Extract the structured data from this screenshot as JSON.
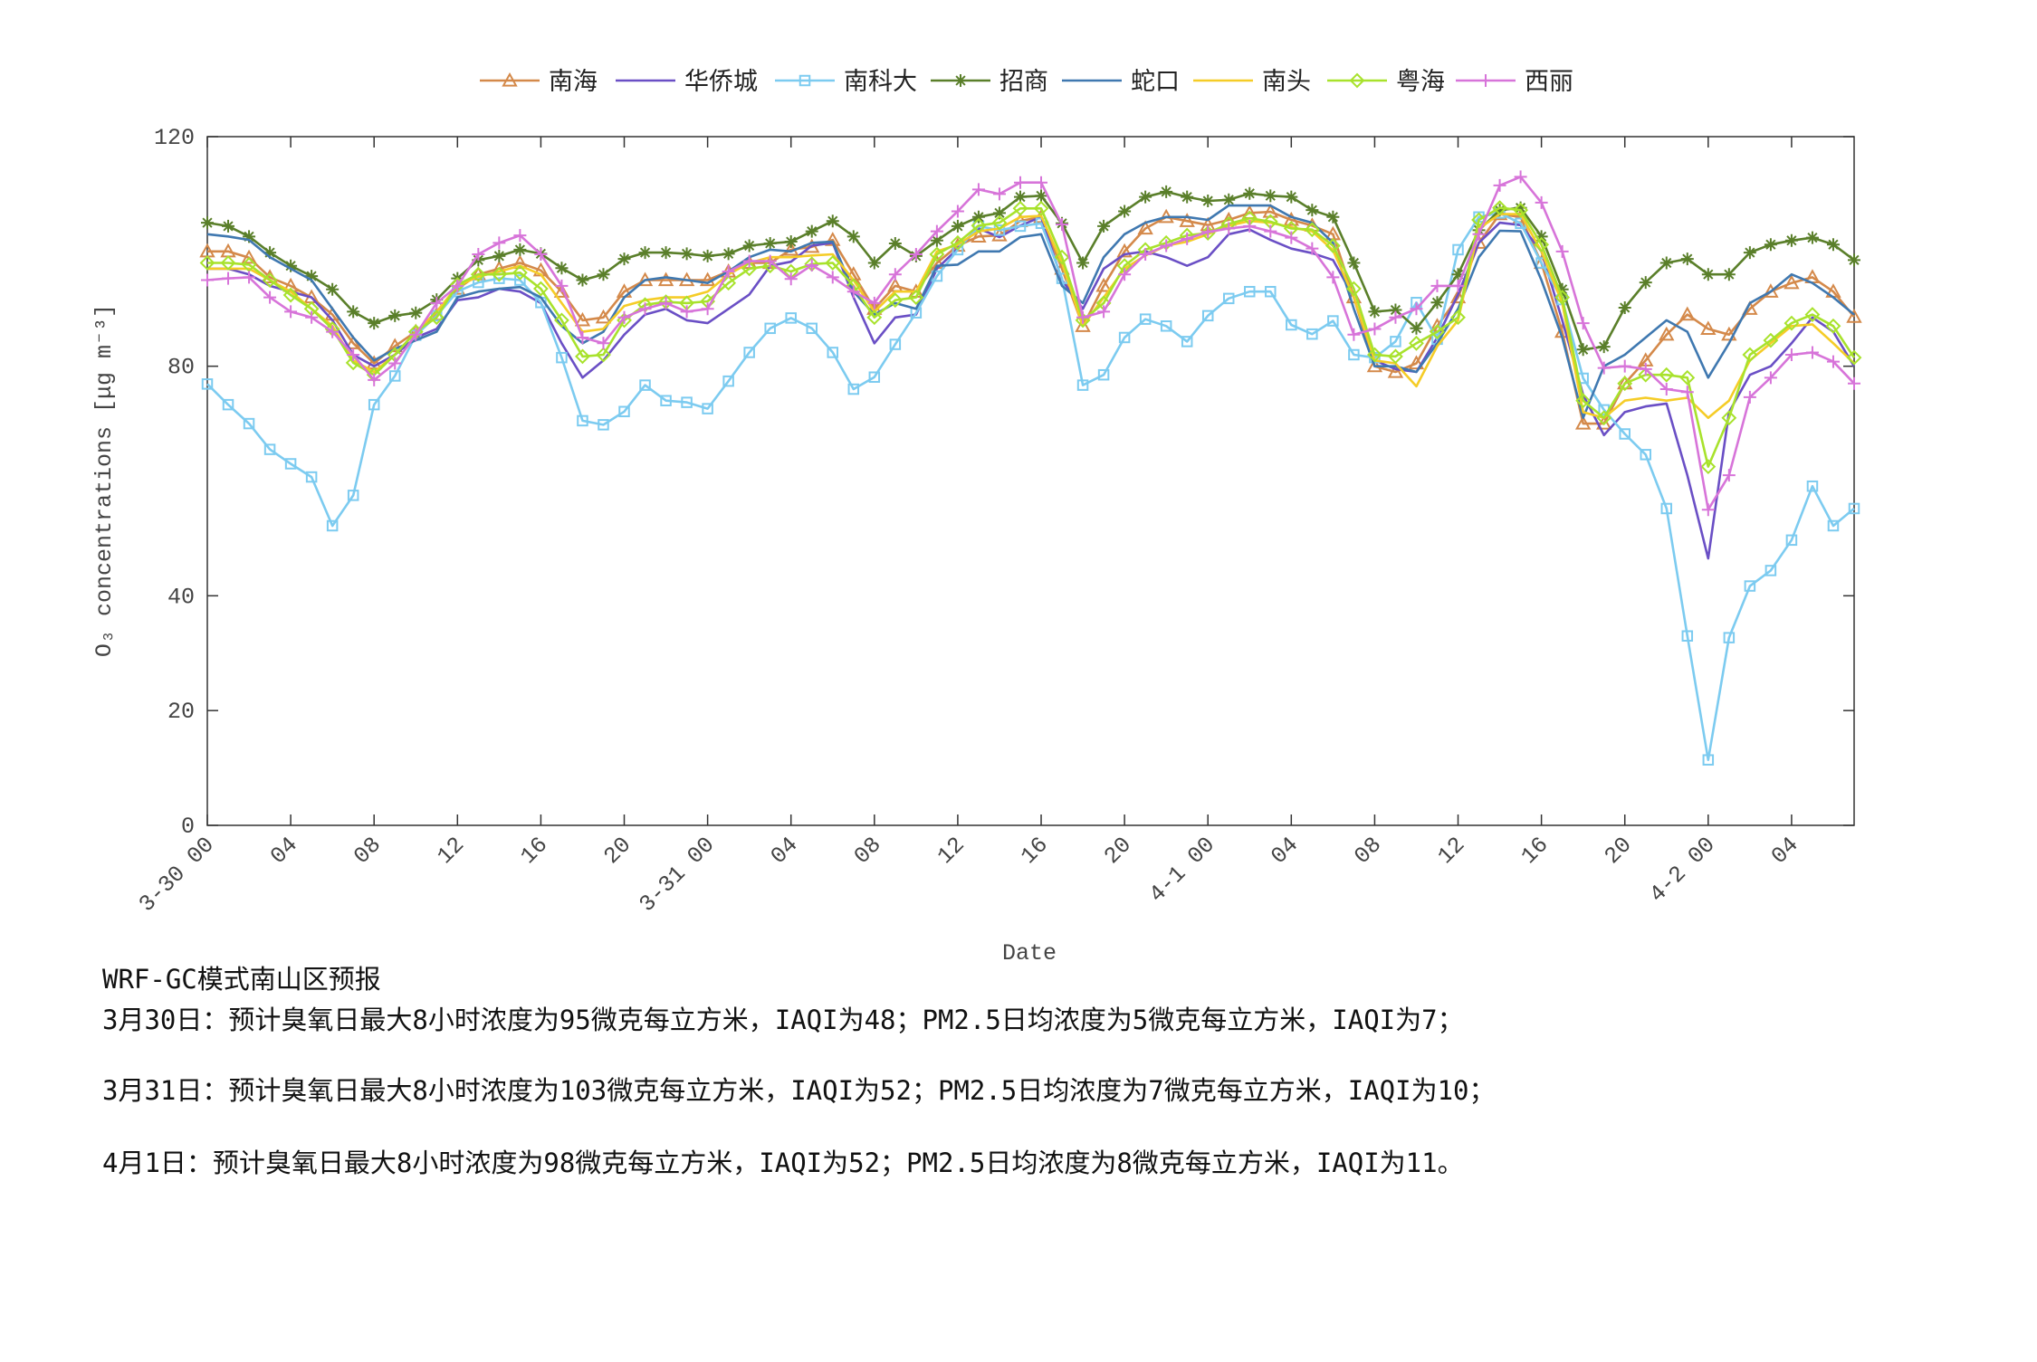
{
  "chart_data": {
    "type": "line",
    "xlabel": "Date",
    "ylabel": "O₃ concentrations [μg m⁻³]",
    "categories": [
      "3-30 00",
      null,
      null,
      null,
      "04",
      null,
      null,
      null,
      "08",
      null,
      null,
      null,
      "12",
      null,
      null,
      null,
      "16",
      null,
      null,
      null,
      "20",
      null,
      null,
      null,
      "3-31 00",
      null,
      null,
      null,
      "04",
      null,
      null,
      null,
      "08",
      null,
      null,
      null,
      "12",
      null,
      null,
      null,
      "16",
      null,
      null,
      null,
      "20",
      null,
      null,
      null,
      "4-1 00",
      null,
      null,
      null,
      "04",
      null,
      null,
      null,
      "08",
      null,
      null,
      null,
      "12",
      null,
      null,
      null,
      "16",
      null,
      null,
      null,
      "20",
      null,
      null,
      null,
      "4-2 00",
      null,
      null,
      null,
      "04",
      null,
      null,
      null
    ],
    "ylim": [
      0,
      120
    ],
    "yticks": [
      0,
      20,
      40,
      80,
      120
    ],
    "legend": "top",
    "series": [
      {
        "name": "南海",
        "color": "#d4894a",
        "marker": "triangle",
        "values": [
          100,
          100,
          98.9,
          95.5,
          94,
          92,
          89,
          84,
          80.5,
          83.5,
          86,
          89,
          93.5,
          96,
          97,
          98,
          96.7,
          93,
          88,
          88.5,
          93,
          95,
          95,
          95,
          95,
          96.5,
          98,
          98,
          100.3,
          100.8,
          102,
          96,
          90,
          94,
          93,
          98,
          101,
          102.6,
          102.8,
          105.3,
          106,
          97,
          87,
          94,
          100,
          104,
          106,
          105.3,
          104.6,
          105.5,
          106.7,
          106.9,
          105.5,
          104.5,
          103,
          92,
          80,
          79,
          80.5,
          87,
          92,
          101.5,
          106.5,
          106,
          98,
          86,
          70,
          70,
          77,
          81,
          85.5,
          89,
          86.5,
          85.5,
          90,
          93,
          94.5,
          95.5,
          93,
          88.6
        ]
      },
      {
        "name": "华侨城",
        "color": "#6a4fc5",
        "marker": "none",
        "values": [
          97,
          97,
          96,
          94,
          93,
          92,
          88,
          82,
          80,
          82,
          85,
          86.5,
          91.5,
          92,
          93.5,
          93,
          91,
          84,
          78,
          81,
          85.5,
          89,
          90,
          88,
          87.5,
          90,
          92.5,
          97.5,
          98.2,
          101,
          101.5,
          92,
          84,
          88.5,
          89,
          97,
          100.5,
          104,
          102.5,
          104.5,
          106,
          95,
          90,
          97,
          99.5,
          100,
          99,
          97.5,
          99,
          103,
          103.8,
          102,
          100.5,
          99.7,
          98.5,
          92,
          81,
          79.5,
          79,
          85,
          92.5,
          101.5,
          105,
          104.6,
          100,
          88,
          75,
          68,
          72,
          73,
          73.5,
          61,
          46.5,
          72,
          78.5,
          80,
          84,
          88.5,
          86,
          80
        ]
      },
      {
        "name": "南科大",
        "color": "#7ccbf0",
        "marker": "square",
        "values": [
          76.9,
          73.3,
          70,
          65.5,
          63,
          60.7,
          52.2,
          57.5,
          73.3,
          78.3,
          85.4,
          88.8,
          93,
          94.6,
          95.3,
          95,
          91.1,
          81.5,
          70.5,
          69.8,
          72.1,
          76.7,
          74,
          73.7,
          72.6,
          77.4,
          82.4,
          86.6,
          88.4,
          86.6,
          82.4,
          76,
          78.1,
          83.8,
          89.3,
          95.7,
          100.3,
          104.4,
          103.7,
          104.4,
          104.9,
          95.3,
          76.7,
          78.5,
          85,
          88.2,
          87,
          84.3,
          88.8,
          91.8,
          93,
          93,
          87.2,
          85.6,
          87.9,
          82,
          81.5,
          84.3,
          91.1,
          84.7,
          100.3,
          106,
          106.7,
          104.9,
          98,
          91.6,
          77.9,
          72.4,
          68.2,
          64.6,
          55.2,
          33,
          11.4,
          32.7,
          41.7,
          44.4,
          49.7,
          59.1,
          52.2,
          55.2
        ]
      },
      {
        "name": "招商",
        "color": "#5a7f2a",
        "marker": "star",
        "values": [
          105,
          104.4,
          102.6,
          99.8,
          97.5,
          95.7,
          93.4,
          89.5,
          87.5,
          88.8,
          89.3,
          91.6,
          95.3,
          98.5,
          99.2,
          100.3,
          99.6,
          97.1,
          95,
          96,
          98.7,
          99.8,
          99.8,
          99.6,
          99.2,
          99.6,
          101,
          101.4,
          101.7,
          103.5,
          105.3,
          102.6,
          98,
          101.4,
          99.2,
          101.9,
          104.4,
          106,
          106.7,
          109.5,
          109.7,
          104.9,
          98,
          104.4,
          107,
          109.5,
          110.4,
          109.5,
          108.8,
          109,
          110.1,
          109.7,
          109.5,
          107.2,
          106,
          98,
          89.5,
          89.8,
          86.6,
          91.1,
          96,
          103.7,
          107.2,
          107.6,
          102.6,
          93.4,
          82.9,
          83.4,
          90.2,
          94.6,
          98,
          98.7,
          96,
          96,
          99.8,
          101.2,
          101.9,
          102.4,
          101.2,
          98.5
        ]
      },
      {
        "name": "蛇口",
        "color": "#3f78b0",
        "marker": "none",
        "values": [
          103,
          102.6,
          102,
          99,
          97,
          95,
          90,
          85,
          81,
          83,
          84.5,
          86,
          92,
          93,
          93.5,
          93.8,
          92,
          87,
          84,
          86,
          92,
          95,
          95.5,
          95,
          94.5,
          96.5,
          99,
          100.3,
          100,
          101.5,
          101.7,
          93,
          89,
          91,
          90,
          97.5,
          97.7,
          100,
          100,
          102.5,
          103,
          94,
          91,
          99,
          103,
          105,
          106,
          106,
          105.5,
          108,
          108,
          108,
          106,
          105,
          101.5,
          90,
          80,
          80,
          79,
          84,
          90,
          99,
          103.6,
          103.5,
          95,
          85,
          71,
          80,
          82,
          85,
          88,
          86,
          78,
          84,
          91,
          93,
          96,
          94.5,
          92,
          89
        ]
      },
      {
        "name": "南头",
        "color": "#f5cc27",
        "marker": "none",
        "values": [
          97,
          97,
          97,
          95,
          93,
          90,
          87,
          81,
          79,
          82,
          86,
          89.5,
          94,
          95.6,
          96.5,
          97.5,
          96,
          91,
          86,
          86.5,
          90.5,
          91.5,
          92,
          92,
          93,
          96,
          98,
          99,
          99,
          99.3,
          99.5,
          95,
          89.5,
          93,
          93,
          100,
          101.2,
          103.5,
          104,
          106,
          106.2,
          98,
          87,
          92,
          97,
          99.3,
          101,
          101.7,
          103,
          104.5,
          105.3,
          105,
          104.2,
          103.5,
          100.2,
          92,
          81,
          80.5,
          76.5,
          83.5,
          88,
          104,
          106.5,
          106.5,
          100,
          91,
          72,
          71,
          74,
          74.5,
          74,
          74.5,
          71,
          74,
          81,
          84,
          87,
          87.3,
          84,
          80.5
        ]
      },
      {
        "name": "粤海",
        "color": "#a8e22c",
        "marker": "diamond",
        "values": [
          98,
          98,
          97.7,
          95,
          92.4,
          90,
          86.5,
          80.6,
          78.5,
          82,
          86,
          88.5,
          94.2,
          96,
          96,
          96.3,
          93.5,
          88,
          81.7,
          82,
          88,
          90.7,
          91.2,
          91,
          91.3,
          94.5,
          97,
          97.5,
          96.5,
          97.8,
          98,
          94,
          88.5,
          91.5,
          92,
          99.5,
          101.5,
          104.5,
          105,
          107.5,
          107.5,
          99,
          88,
          91,
          97.5,
          100.3,
          101.5,
          102.8,
          103.2,
          104.8,
          105.8,
          105.2,
          104,
          103.8,
          101,
          93.5,
          82,
          81.7,
          84,
          86,
          88.5,
          105.5,
          107.6,
          107.2,
          101.2,
          92,
          74,
          71,
          77,
          78.5,
          78.5,
          78,
          62.5,
          71,
          82,
          84.5,
          87.5,
          89,
          87,
          81.5
        ]
      },
      {
        "name": "西丽",
        "color": "#d774d9",
        "marker": "plus",
        "values": [
          95,
          95.3,
          95.5,
          92,
          89.5,
          88.5,
          86,
          82,
          77.6,
          80.5,
          85.5,
          91,
          94,
          99.5,
          101.5,
          102.8,
          99.5,
          94,
          85,
          84,
          88.5,
          90,
          91,
          89.5,
          90,
          96.5,
          98.3,
          98.3,
          95.2,
          97.6,
          95.5,
          93,
          91,
          96,
          99.5,
          103.5,
          107,
          110.8,
          110,
          112,
          112,
          104.7,
          88.5,
          89.5,
          96,
          99.5,
          101,
          102.2,
          103.4,
          104,
          104.4,
          103.5,
          102.4,
          100.5,
          95.5,
          85.5,
          86.5,
          88.5,
          90,
          94,
          94,
          103,
          111.5,
          113,
          108.5,
          100,
          87.5,
          79.7,
          80,
          79.5,
          76,
          75.5,
          55,
          61,
          74.6,
          78,
          82,
          82.4,
          80.8,
          77
        ]
      }
    ],
    "annotations": [
      "WRF-GC模式南山区预报",
      "3月30日：预计臭氧日最大8小时浓度为95微克每立方米，IAQI为48；PM2.5日均浓度为5微克每立方米，IAQI为7；",
      "3月31日：预计臭氧日最大8小时浓度为103微克每立方米，IAQI为52；PM2.5日均浓度为7微克每立方米，IAQI为10；",
      "4月1日：预计臭氧日最大8小时浓度为98微克每立方米，IAQI为52；PM2.5日均浓度为8微克每立方米，IAQI为11。"
    ]
  }
}
